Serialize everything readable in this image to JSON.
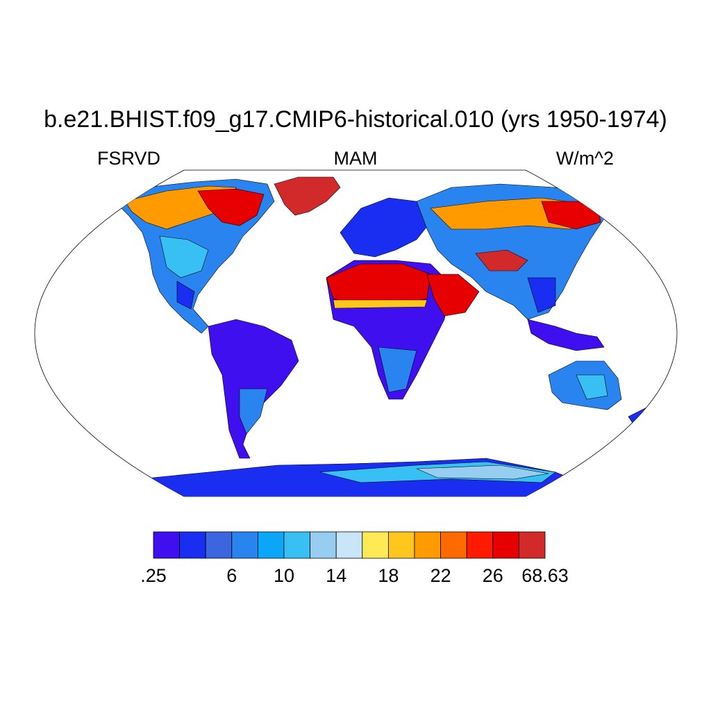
{
  "title": "b.e21.BHIST.f09_g17.CMIP6-historical.010 (yrs 1950-1974)",
  "subtitle_left": "FSRVD",
  "subtitle_center": "MAM",
  "subtitle_right": "W/m^2",
  "colorbar": {
    "colors": [
      "#3f0ff0",
      "#1a2ef2",
      "#3b66e0",
      "#2a84f0",
      "#0aa6f7",
      "#38c0f5",
      "#96cdf0",
      "#c9e6f8",
      "#ffe955",
      "#ffc61e",
      "#ff9a00",
      "#ff6a00",
      "#ff1a00",
      "#e60000",
      "#d22a2a"
    ],
    "labels": [
      {
        "text": ".25",
        "boundary": 0
      },
      {
        "text": "6",
        "boundary": 3
      },
      {
        "text": "10",
        "boundary": 5
      },
      {
        "text": "14",
        "boundary": 7
      },
      {
        "text": "18",
        "boundary": 9
      },
      {
        "text": "22",
        "boundary": 11
      },
      {
        "text": "26",
        "boundary": 13
      },
      {
        "text": "68.63",
        "boundary": 15
      }
    ]
  }
}
